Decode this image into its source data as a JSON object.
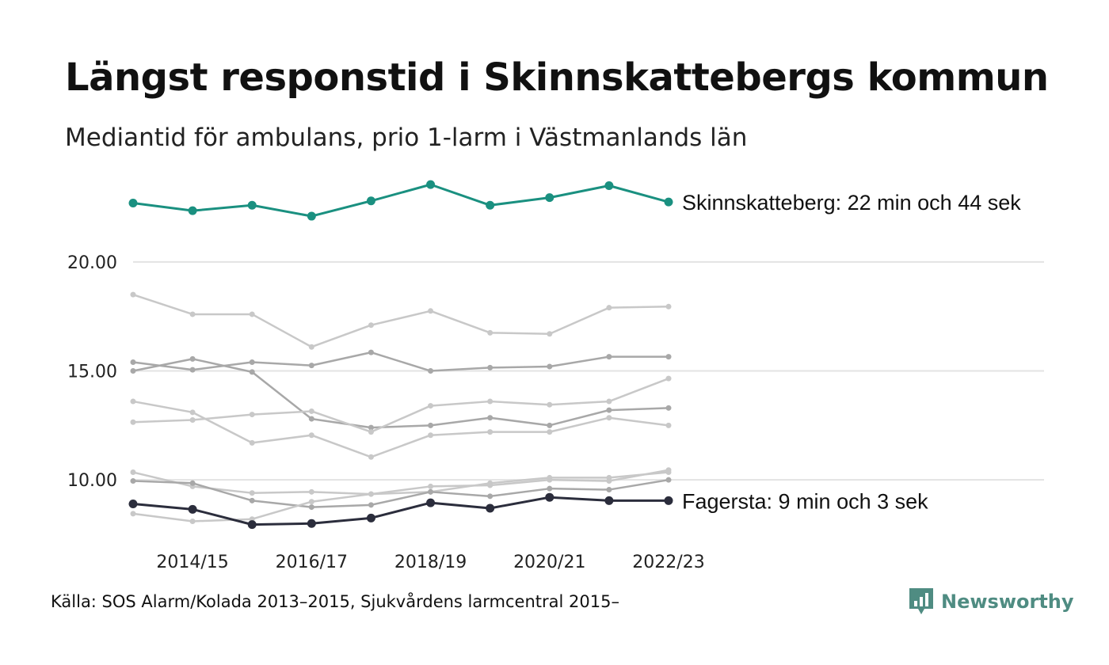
{
  "title": "Längst responstid i Skinnskattebergs kommun",
  "subtitle": "Mediantid för ambulans, prio 1-larm i Västmanlands län",
  "source": "Källa: SOS Alarm/Kolada 2013–2015, Sjukvårdens larmcentral 2015–",
  "logo": {
    "text": "Newsworthy",
    "icon": "newsworthy-chart-icon",
    "color": "#4f8c82"
  },
  "colors": {
    "highlight": "#1a9080",
    "lowest": "#2b2d3c",
    "others_light": "#c8c8c8",
    "others_mid": "#a8a8a8",
    "grid": "#e3e3e3"
  },
  "chart_data": {
    "type": "line",
    "x": [
      "2013/14",
      "2014/15",
      "2015/16",
      "2016/17",
      "2017/18",
      "2018/19",
      "2019/20",
      "2020/21",
      "2021/22",
      "2022/23"
    ],
    "x_tick_labels": [
      "2014/15",
      "2016/17",
      "2018/19",
      "2020/21",
      "2022/23"
    ],
    "y_tick_labels": [
      "10.00",
      "15.00",
      "20.00"
    ],
    "y_ticks": [
      10,
      15,
      20
    ],
    "ylim": [
      7.5,
      23.7
    ],
    "grid": true,
    "legend": "none",
    "series": [
      {
        "role": "other",
        "tone": "light",
        "values": [
          18.5,
          17.6,
          17.6,
          16.1,
          17.1,
          17.75,
          16.75,
          16.7,
          17.9,
          17.95
        ]
      },
      {
        "role": "other",
        "tone": "mid",
        "values": [
          15.4,
          15.05,
          15.4,
          15.25,
          15.85,
          15.0,
          15.15,
          15.2,
          15.65,
          15.65
        ]
      },
      {
        "role": "other",
        "tone": "mid",
        "values": [
          15.0,
          15.55,
          14.95,
          12.8,
          12.4,
          12.5,
          12.85,
          12.5,
          13.2,
          13.3
        ]
      },
      {
        "role": "other",
        "tone": "light",
        "values": [
          13.6,
          13.1,
          11.7,
          12.05,
          11.05,
          12.05,
          12.2,
          12.2,
          12.85,
          12.5
        ]
      },
      {
        "role": "other",
        "tone": "light",
        "values": [
          12.65,
          12.75,
          13.0,
          13.15,
          12.2,
          13.4,
          13.6,
          13.45,
          13.6,
          14.65
        ]
      },
      {
        "role": "other",
        "tone": "light",
        "values": [
          10.35,
          9.7,
          9.4,
          9.45,
          9.35,
          9.45,
          9.85,
          10.1,
          10.1,
          10.35
        ]
      },
      {
        "role": "other",
        "tone": "mid",
        "values": [
          9.95,
          9.85,
          9.05,
          8.75,
          8.85,
          9.45,
          9.25,
          9.6,
          9.55,
          10.0
        ]
      },
      {
        "role": "other",
        "tone": "light",
        "values": [
          8.45,
          8.1,
          8.2,
          9.0,
          9.35,
          9.7,
          9.75,
          10.0,
          9.95,
          10.45
        ]
      },
      {
        "role": "lowest",
        "name": "Fagersta",
        "end_label": "Fagersta: 9 min och 3 sek",
        "values": [
          8.9,
          8.65,
          7.95,
          8.0,
          8.25,
          8.95,
          8.7,
          9.2,
          9.05,
          9.05
        ]
      },
      {
        "role": "highlight",
        "name": "Skinnskatteberg",
        "end_label": "Skinnskatteberg: 22 min och 44 sek",
        "values": [
          22.7,
          22.35,
          22.6,
          22.1,
          22.8,
          23.55,
          22.6,
          22.95,
          23.5,
          22.75
        ]
      }
    ]
  }
}
